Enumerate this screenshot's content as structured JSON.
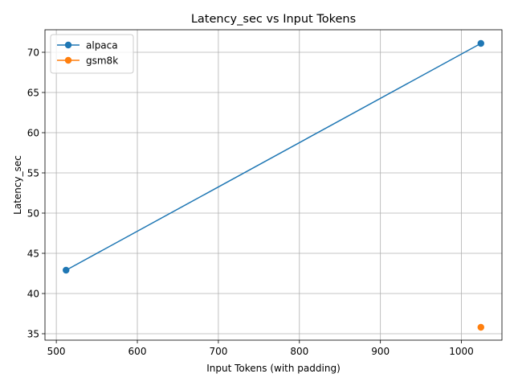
{
  "chart_data": {
    "type": "line",
    "title": "Latency_sec vs Input Tokens",
    "xlabel": "Input Tokens (with padding)",
    "ylabel": "Latency_sec",
    "xlim": [
      486,
      1050
    ],
    "ylim": [
      34.2,
      72.8
    ],
    "xticks": [
      500,
      600,
      700,
      800,
      900,
      1000
    ],
    "yticks": [
      35,
      40,
      45,
      50,
      55,
      60,
      65,
      70
    ],
    "grid": true,
    "legend": "top-left",
    "series": [
      {
        "name": "alpaca",
        "color": "#1f77b4",
        "x": [
          512,
          1024
        ],
        "y": [
          42.9,
          71.1
        ]
      },
      {
        "name": "gsm8k",
        "color": "#ff7f0e",
        "x": [
          1024
        ],
        "y": [
          35.8
        ]
      }
    ]
  }
}
